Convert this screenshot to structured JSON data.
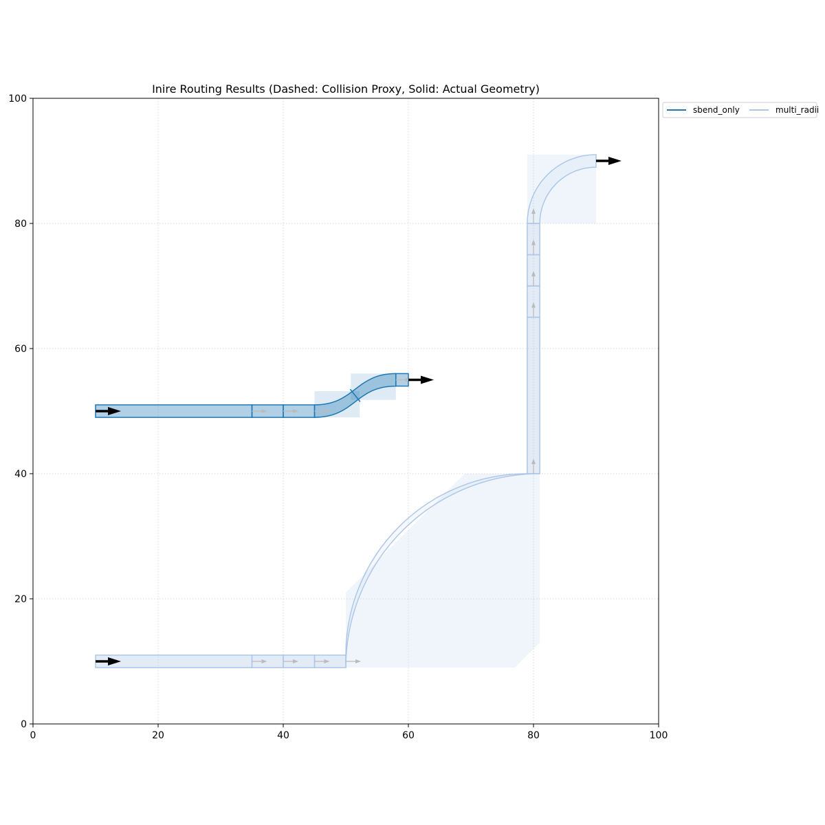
{
  "chart_data": {
    "type": "line",
    "title": "Inire Routing Results (Dashed: Collision Proxy, Solid: Actual Geometry)",
    "xlabel": "",
    "ylabel": "",
    "xlim": [
      0,
      100
    ],
    "ylim": [
      0,
      100
    ],
    "xticks": [
      0,
      20,
      40,
      60,
      80,
      100
    ],
    "yticks": [
      0,
      20,
      40,
      60,
      80,
      100
    ],
    "grid": true,
    "legend": {
      "placement": "upper-right-outside",
      "columns": 2
    },
    "waveguide_width": 2,
    "series": [
      {
        "name": "sbend_only",
        "color": "#1f77b4",
        "start": [
          10,
          50
        ],
        "end": [
          60,
          55
        ],
        "straight_segments": [
          [
            10,
            35
          ],
          [
            35,
            40
          ],
          [
            40,
            45
          ]
        ],
        "sbend": {
          "x0": 45,
          "x1": 58,
          "y0": 50,
          "y1": 55
        },
        "end_segment": [
          58,
          60
        ],
        "proxies": [
          {
            "x0": 45,
            "x1": 52.2,
            "y0": 49,
            "y1": 53.2
          },
          {
            "x0": 50.8,
            "x1": 58,
            "y0": 51.8,
            "y1": 56
          }
        ],
        "direction_arrows": [
          [
            35,
            50
          ],
          [
            40,
            50
          ],
          [
            45,
            50
          ],
          [
            58,
            55
          ]
        ]
      },
      {
        "name": "multi_radii",
        "color": "#aec7e8",
        "start": [
          10,
          10
        ],
        "end": [
          90,
          90
        ],
        "straight_segments": [
          [
            10,
            35
          ],
          [
            35,
            40
          ],
          [
            40,
            45
          ],
          [
            45,
            50
          ]
        ],
        "bend1": {
          "cx": 50,
          "cy": 40,
          "r": 30
        },
        "vertical_segments": [
          [
            40,
            65
          ],
          [
            65,
            70
          ],
          [
            70,
            75
          ],
          [
            75,
            80
          ]
        ],
        "bend2": {
          "cx": 90,
          "cy": 80,
          "r": 10
        },
        "proxy_polygons": [
          [
            [
              50,
              21
            ],
            [
              50,
              11
            ],
            [
              50,
              9
            ],
            [
              77,
              9
            ],
            [
              81,
              13
            ],
            [
              81,
              40
            ],
            [
              69,
              40
            ]
          ],
          [
            [
              79,
              80
            ],
            [
              79,
              91
            ],
            [
              90,
              91
            ],
            [
              90,
              80
            ]
          ]
        ],
        "direction_arrows_h": [
          [
            35,
            10
          ],
          [
            40,
            10
          ],
          [
            45,
            10
          ],
          [
            50,
            10
          ]
        ],
        "direction_arrows_v": [
          [
            80,
            40
          ],
          [
            80,
            65
          ],
          [
            80,
            70
          ],
          [
            80,
            75
          ],
          [
            80,
            80
          ]
        ]
      }
    ],
    "endpoint_arrows": [
      {
        "at": [
          10,
          50
        ],
        "dir": "right"
      },
      {
        "at": [
          60,
          55
        ],
        "dir": "right"
      },
      {
        "at": [
          10,
          10
        ],
        "dir": "right"
      },
      {
        "at": [
          90,
          90
        ],
        "dir": "right"
      }
    ]
  }
}
